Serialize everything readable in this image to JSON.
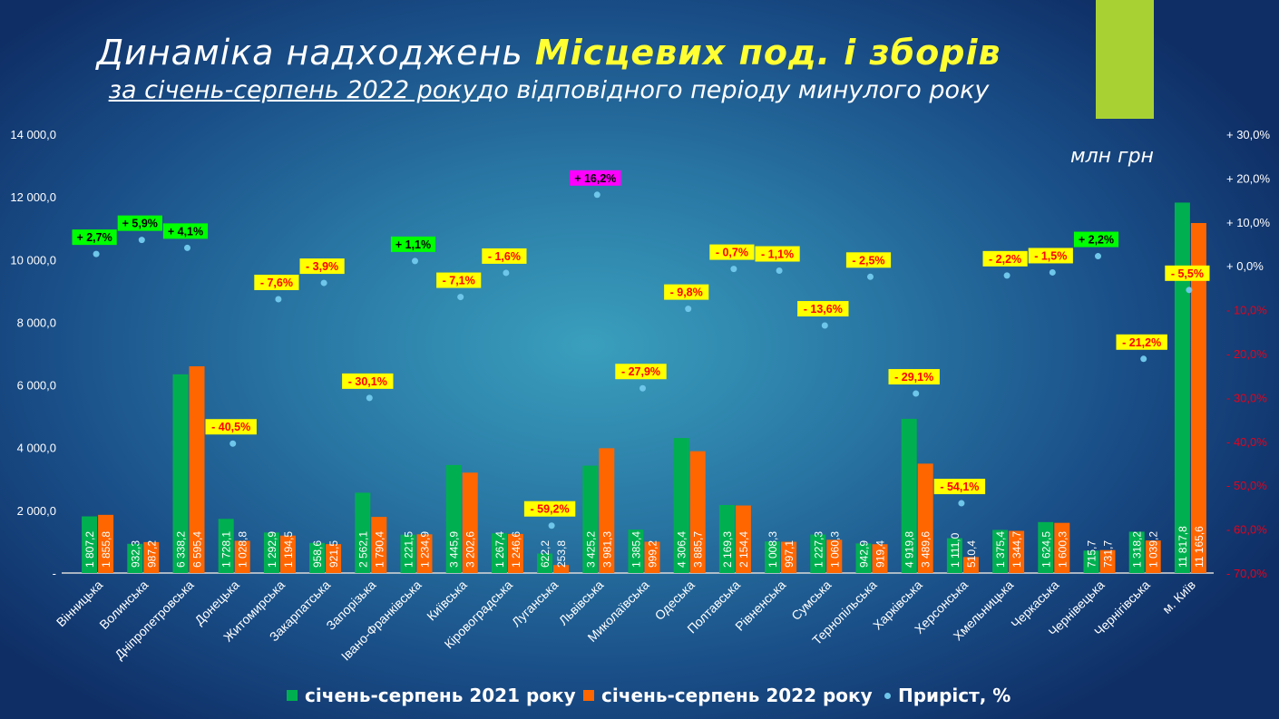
{
  "title": {
    "part1": "Динаміка надходжень ",
    "part2": "Місцевих под. і зборів"
  },
  "subtitle": {
    "underlined": "за січень-серпень 2022 року",
    "rest": "до відповідного періоду минулого року"
  },
  "units": "млн грн",
  "colors": {
    "s2021": "#00b050",
    "s2022": "#ff6600",
    "growth": "#6ec6ea",
    "neg_box": "#ffff00",
    "neg_text": "#ff0000",
    "pos_box": "#00ff00",
    "max_box": "#ff00ff"
  },
  "chart_data": {
    "type": "bar",
    "title": "Динаміка надходжень Місцевих под. і зборів",
    "ylabel": "млн грн",
    "ylim": [
      0,
      14000
    ],
    "y2lim": [
      -70,
      30
    ],
    "yticks": [
      "-",
      "2 000,0",
      "4 000,0",
      "6 000,0",
      "8 000,0",
      "10 000,0",
      "12 000,0",
      "14 000,0"
    ],
    "y2ticks": [
      "- 70,0%",
      "- 60,0%",
      "- 50,0%",
      "- 40,0%",
      "- 30,0%",
      "- 20,0%",
      "- 10,0%",
      "+ 0,0%",
      "+ 10,0%",
      "+ 20,0%",
      "+ 30,0%"
    ],
    "legend_position": "bottom",
    "categories": [
      "Вінницька",
      "Волинська",
      "Дніпропетровська",
      "Донецька",
      "Житомирська",
      "Закарпатська",
      "Запорізька",
      "Івано-Франківська",
      "Київська",
      "Кіровоградська",
      "Луганська",
      "Львівська",
      "Миколаївська",
      "Одеська",
      "Полтавська",
      "Рівненська",
      "Сумська",
      "Тернопільська",
      "Харківська",
      "Херсонська",
      "Хмельницька",
      "Черкаська",
      "Чернівецька",
      "Чернігівська",
      "м. Київ"
    ],
    "series": [
      {
        "name": "січень-серпень 2021 року",
        "values": [
          1807.2,
          932.3,
          6338.2,
          1728.1,
          1292.9,
          958.6,
          2562.1,
          1221.5,
          3445.9,
          1267.4,
          622.2,
          3425.2,
          1385.4,
          4306.4,
          2169.3,
          1008.3,
          1227.3,
          942.9,
          4919.8,
          1111.0,
          1375.4,
          1624.5,
          715.7,
          1318.2,
          11817.8
        ]
      },
      {
        "name": "січень-серпень 2022 року",
        "values": [
          1855.8,
          987.2,
          6595.4,
          1028.8,
          1194.5,
          921.5,
          1790.4,
          1234.9,
          3202.6,
          1246.6,
          253.8,
          3981.3,
          999.2,
          3885.7,
          2154.4,
          997.1,
          1060.3,
          919.4,
          3489.6,
          510.4,
          1344.7,
          1600.3,
          731.7,
          1039.2,
          11165.6
        ]
      },
      {
        "name": "Приріст, %",
        "axis": "right",
        "values": [
          2.7,
          5.9,
          4.1,
          -40.5,
          -7.6,
          -3.9,
          -30.1,
          1.1,
          -7.1,
          -1.6,
          -59.2,
          16.2,
          -27.9,
          -9.8,
          -0.7,
          -1.1,
          -13.6,
          -2.5,
          -29.1,
          -54.1,
          -2.2,
          -1.5,
          2.2,
          -21.2,
          -5.5
        ]
      }
    ]
  }
}
